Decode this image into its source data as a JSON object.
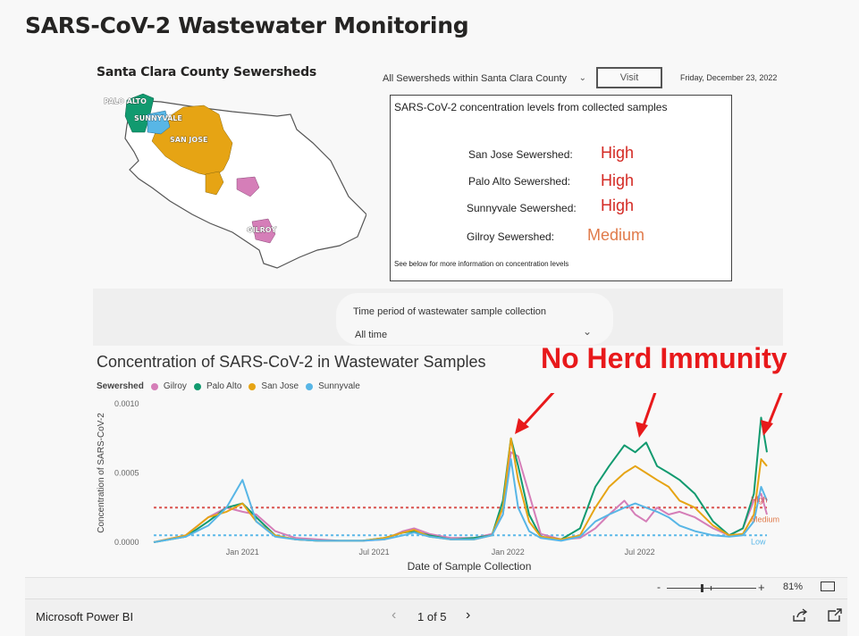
{
  "header": {
    "title": "SARS-CoV-2 Wastewater Monitoring"
  },
  "map": {
    "title": "Santa Clara County Sewersheds",
    "labels": {
      "palo_alto": "PALO ALTO",
      "sunnyvale": "SUNNYVALE",
      "san_jose": "SAN JOSE",
      "gilroy": "GILROY"
    }
  },
  "controls": {
    "dropdown_value": "All Sewersheds within Santa Clara County",
    "visit_label": "Visit",
    "date": "Friday, December 23, 2022"
  },
  "levels": {
    "title": "SARS-CoV-2 concentration levels from collected samples",
    "rows": [
      {
        "name": "San Jose Sewershed:",
        "value": "High",
        "color": "#d42a24"
      },
      {
        "name": "Palo Alto Sewershed:",
        "value": "High",
        "color": "#d42a24"
      },
      {
        "name": "Sunnyvale Sewershed:",
        "value": "High",
        "color": "#d42a24"
      },
      {
        "name": "Gilroy Sewershed:",
        "value": "Medium",
        "color": "#e07a4a"
      }
    ],
    "note": "See below for more information on concentration levels"
  },
  "filter": {
    "label": "Time period of wastewater sample collection",
    "value": "All time"
  },
  "annotation": "No Herd Immunity",
  "chart_data": {
    "type": "line",
    "title": "Concentration of SARS-CoV-2 in Wastewater Samples",
    "legend_title": "Sewershed",
    "xlabel": "Date of Sample Collection",
    "ylabel": "Concentration of SARS-CoV-2",
    "yticks": [
      "0.0000",
      "0.0005",
      "0.0010"
    ],
    "ylim": [
      0,
      0.001
    ],
    "xticks": [
      "Jan 2021",
      "Jul 2021",
      "Jan 2022",
      "Jul 2022"
    ],
    "reference_lines": [
      {
        "label": "High",
        "value": 0.00025,
        "color": "#d9534f"
      },
      {
        "label": "Medium",
        "value": 0.00017,
        "color": "#e07a4a"
      },
      {
        "label": "Low",
        "value": 5e-05,
        "color": "#5bb8e8"
      }
    ],
    "x": [
      "2020-09-01",
      "2020-10-15",
      "2020-11-15",
      "2020-12-10",
      "2021-01-01",
      "2021-01-20",
      "2021-02-15",
      "2021-03-15",
      "2021-04-15",
      "2021-05-15",
      "2021-06-15",
      "2021-07-15",
      "2021-08-10",
      "2021-08-25",
      "2021-09-15",
      "2021-10-15",
      "2021-11-15",
      "2021-12-10",
      "2021-12-25",
      "2022-01-05",
      "2022-01-15",
      "2022-01-30",
      "2022-02-15",
      "2022-03-15",
      "2022-04-10",
      "2022-05-01",
      "2022-05-20",
      "2022-06-10",
      "2022-06-25",
      "2022-07-10",
      "2022-07-25",
      "2022-08-10",
      "2022-08-25",
      "2022-09-15",
      "2022-10-10",
      "2022-11-01",
      "2022-11-20",
      "2022-12-05",
      "2022-12-15",
      "2022-12-23"
    ],
    "series": [
      {
        "name": "Gilroy",
        "color": "#d57eb8",
        "values": [
          0,
          5e-05,
          0.00018,
          0.00025,
          0.00022,
          0.0002,
          8e-05,
          3e-05,
          2e-05,
          1e-05,
          1e-05,
          2e-05,
          8e-05,
          0.0001,
          6e-05,
          3e-05,
          3e-05,
          6e-05,
          0.0002,
          0.00065,
          0.00062,
          0.00035,
          6e-05,
          2e-05,
          3e-05,
          0.0001,
          0.0002,
          0.0003,
          0.0002,
          0.00015,
          0.00025,
          0.0002,
          0.00022,
          0.00018,
          0.0001,
          5e-05,
          0.0001,
          0.0003,
          0.00035,
          0.0002
        ]
      },
      {
        "name": "Palo Alto",
        "color": "#119a6f",
        "values": [
          0,
          4e-05,
          0.00015,
          0.00025,
          0.00028,
          0.00018,
          5e-05,
          2e-05,
          1e-05,
          1e-05,
          1e-05,
          3e-05,
          7e-05,
          8e-05,
          5e-05,
          2e-05,
          3e-05,
          5e-05,
          0.0003,
          0.00075,
          0.00055,
          0.0002,
          4e-05,
          2e-05,
          0.0001,
          0.0004,
          0.00055,
          0.0007,
          0.00065,
          0.00072,
          0.00055,
          0.0005,
          0.00045,
          0.00035,
          0.00015,
          5e-05,
          0.0001,
          0.00035,
          0.0009,
          0.00065
        ]
      },
      {
        "name": "San Jose",
        "color": "#e6a414",
        "values": [
          0,
          5e-05,
          0.00018,
          0.00022,
          0.00028,
          0.00015,
          5e-05,
          2e-05,
          1e-05,
          1e-05,
          1e-05,
          3e-05,
          7e-05,
          9e-05,
          4e-05,
          2e-05,
          2e-05,
          5e-05,
          0.00025,
          0.00075,
          0.00045,
          0.00015,
          4e-05,
          2e-05,
          5e-05,
          0.00025,
          0.0004,
          0.0005,
          0.00055,
          0.0005,
          0.00045,
          0.0004,
          0.0003,
          0.00025,
          0.00012,
          5e-05,
          6e-05,
          0.0002,
          0.0006,
          0.00055
        ]
      },
      {
        "name": "Sunnyvale",
        "color": "#58b6e6",
        "values": [
          0,
          4e-05,
          0.00012,
          0.00025,
          0.00045,
          0.00015,
          4e-05,
          2e-05,
          1e-05,
          1e-05,
          1e-05,
          2e-05,
          5e-05,
          7e-05,
          4e-05,
          2e-05,
          2e-05,
          5e-05,
          0.0002,
          0.0006,
          0.00025,
          8e-05,
          3e-05,
          1e-05,
          4e-05,
          0.00015,
          0.0002,
          0.00025,
          0.00028,
          0.00025,
          0.00022,
          0.00018,
          0.00012,
          8e-05,
          5e-05,
          4e-05,
          5e-05,
          0.00015,
          0.0004,
          0.0003
        ]
      }
    ]
  },
  "footer": {
    "zoom_minus": "-",
    "zoom_plus": "+",
    "zoom": "81%",
    "brand": "Microsoft Power BI",
    "page": "1 of 5",
    "prev": "‹",
    "next": "›"
  }
}
